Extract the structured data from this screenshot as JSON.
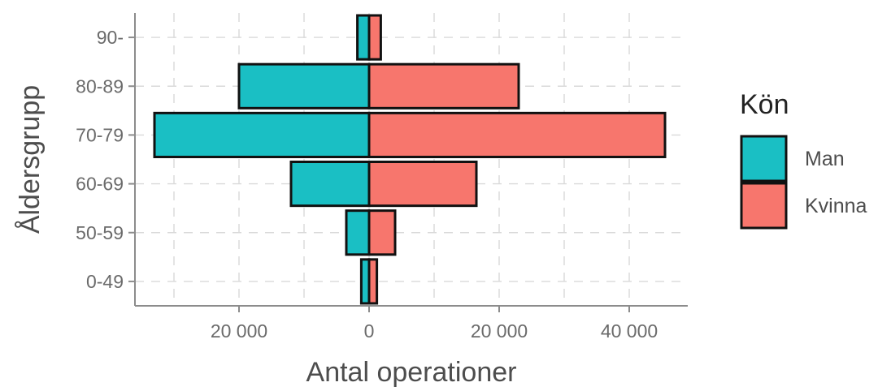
{
  "chart_data": {
    "type": "bar",
    "orientation": "horizontal-diverging",
    "xlabel": "Antal operationer",
    "ylabel": "Åldersgrupp",
    "categories": [
      "0-49",
      "50-59",
      "60-69",
      "70-79",
      "80-89",
      "90-"
    ],
    "series": [
      {
        "name": "Man",
        "color": "#1ABFC4",
        "direction": "left",
        "values": [
          1200,
          3500,
          12000,
          33000,
          20000,
          1800
        ]
      },
      {
        "name": "Kvinna",
        "color": "#F7766D",
        "direction": "right",
        "values": [
          1200,
          4000,
          16500,
          45500,
          23000,
          1800
        ]
      }
    ],
    "xlim": [
      -36000,
      49000
    ],
    "x_ticks": [
      {
        "value": -20000,
        "label": "20 000"
      },
      {
        "value": 0,
        "label": "0"
      },
      {
        "value": 20000,
        "label": "20 000"
      },
      {
        "value": 40000,
        "label": "40 000"
      }
    ],
    "grid": true,
    "legend": {
      "title": "Kön",
      "placement": "right"
    }
  }
}
